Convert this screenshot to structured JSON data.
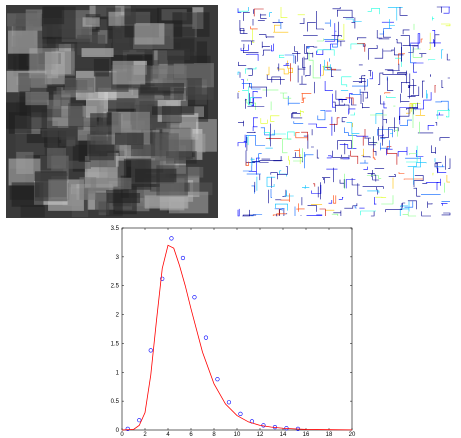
{
  "chart_data": {
    "type": "scatter",
    "xlim": [
      0,
      20
    ],
    "xticks": [
      0,
      2,
      4,
      6,
      8,
      10,
      12,
      14,
      16,
      18,
      20
    ],
    "ylim": [
      0,
      3.5
    ],
    "yticks": [
      0,
      0.5,
      1,
      1.5,
      2,
      2.5,
      3,
      3.5
    ],
    "series": [
      {
        "type": "scatter",
        "color": "#0000ff",
        "x": [
          0.5,
          1.5,
          2.5,
          3.5,
          4.3,
          5.3,
          6.3,
          7.3,
          8.3,
          9.3,
          10.3,
          11.3,
          12.3,
          13.3,
          14.3,
          15.3
        ],
        "values": [
          0.02,
          0.17,
          1.38,
          2.62,
          3.32,
          2.98,
          2.3,
          1.6,
          0.88,
          0.48,
          0.28,
          0.15,
          0.08,
          0.05,
          0.03,
          0.02
        ]
      },
      {
        "type": "line",
        "color": "#ff0000",
        "x": [
          0,
          1,
          1.5,
          2,
          2.5,
          3,
          3.5,
          4,
          4.5,
          5,
          5.5,
          6,
          7,
          8,
          9,
          10,
          11,
          12,
          13,
          14,
          15,
          16,
          18,
          20
        ],
        "values": [
          0,
          0.01,
          0.08,
          0.3,
          0.95,
          1.9,
          2.8,
          3.2,
          3.15,
          2.85,
          2.5,
          2.1,
          1.35,
          0.8,
          0.45,
          0.25,
          0.14,
          0.08,
          0.05,
          0.03,
          0.02,
          0.01,
          0.005,
          0.002
        ]
      }
    ]
  }
}
